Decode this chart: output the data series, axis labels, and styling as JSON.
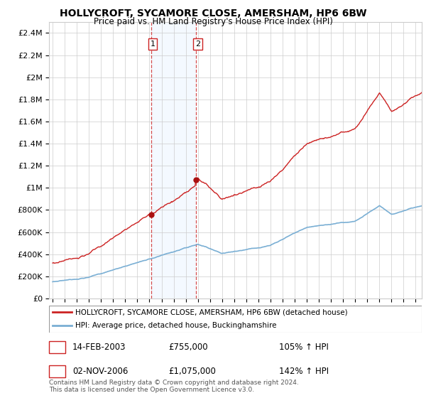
{
  "title": "HOLLYCROFT, SYCAMORE CLOSE, AMERSHAM, HP6 6BW",
  "subtitle": "Price paid vs. HM Land Registry's House Price Index (HPI)",
  "legend_line1": "HOLLYCROFT, SYCAMORE CLOSE, AMERSHAM, HP6 6BW (detached house)",
  "legend_line2": "HPI: Average price, detached house, Buckinghamshire",
  "transaction1_label": "1",
  "transaction1_date": "14-FEB-2003",
  "transaction1_price": "£755,000",
  "transaction1_hpi": "105% ↑ HPI",
  "transaction2_label": "2",
  "transaction2_date": "02-NOV-2006",
  "transaction2_price": "£1,075,000",
  "transaction2_hpi": "142% ↑ HPI",
  "footnote": "Contains HM Land Registry data © Crown copyright and database right 2024.\nThis data is licensed under the Open Government Licence v3.0.",
  "sale1_year": 2003.12,
  "sale1_price": 755000,
  "sale2_year": 2006.84,
  "sale2_price": 1075000,
  "hpi_color": "#7aafd4",
  "price_color": "#cc2222",
  "sale_marker_color": "#aa1111",
  "highlight_color": "#ddeeff",
  "ylim_min": 0,
  "ylim_max": 2500000,
  "yticks": [
    0,
    200000,
    400000,
    600000,
    800000,
    1000000,
    1200000,
    1400000,
    1600000,
    1800000,
    2000000,
    2200000,
    2400000
  ],
  "background_color": "#ffffff",
  "grid_color": "#cccccc"
}
